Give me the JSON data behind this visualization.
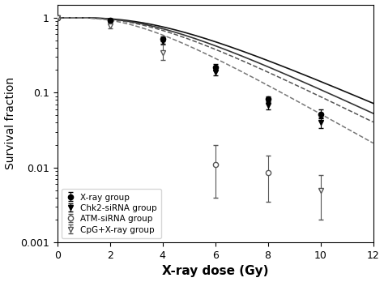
{
  "xlabel": "X-ray dose (Gy)",
  "ylabel": "Survival fraction",
  "xlim": [
    0,
    12
  ],
  "ylim_log": [
    0.001,
    1.5
  ],
  "xray_dose": [
    0,
    2,
    4,
    6,
    8,
    10
  ],
  "xray_sf": [
    1.0,
    0.92,
    0.52,
    0.22,
    0.082,
    0.052
  ],
  "xray_err": [
    0.0,
    0.03,
    0.04,
    0.022,
    0.008,
    0.007
  ],
  "chk2_dose": [
    0,
    2,
    4,
    6,
    8,
    10
  ],
  "chk2_sf": [
    1.0,
    0.9,
    0.48,
    0.19,
    0.068,
    0.04
  ],
  "chk2_err": [
    0.0,
    0.03,
    0.035,
    0.02,
    0.008,
    0.006
  ],
  "atm_dose": [
    0,
    6,
    8
  ],
  "atm_sf": [
    1.0,
    0.011,
    0.0085
  ],
  "atm_err_up": [
    0.0,
    0.009,
    0.006
  ],
  "atm_err_dn": [
    0.0,
    0.007,
    0.005
  ],
  "cpg_dose": [
    0,
    2,
    4,
    10
  ],
  "cpg_sf": [
    1.0,
    0.78,
    0.34,
    0.005
  ],
  "cpg_err_up": [
    0.0,
    0.08,
    0.1,
    0.003
  ],
  "cpg_err_dn": [
    0.0,
    0.06,
    0.07,
    0.003
  ],
  "fit_xray_n": 5,
  "fit_xray_D0": 2.85,
  "fit_chk2_n": 5,
  "fit_chk2_D0": 2.65,
  "fit_atm_n": 5,
  "fit_atm_D0": 2.5,
  "fit_cpg_n": 5,
  "fit_cpg_D0": 2.2,
  "legend_labels": [
    "X-ray group",
    "Chk2-siRNA group",
    "ATM-siRNA group",
    "CpG+X-ray group"
  ]
}
